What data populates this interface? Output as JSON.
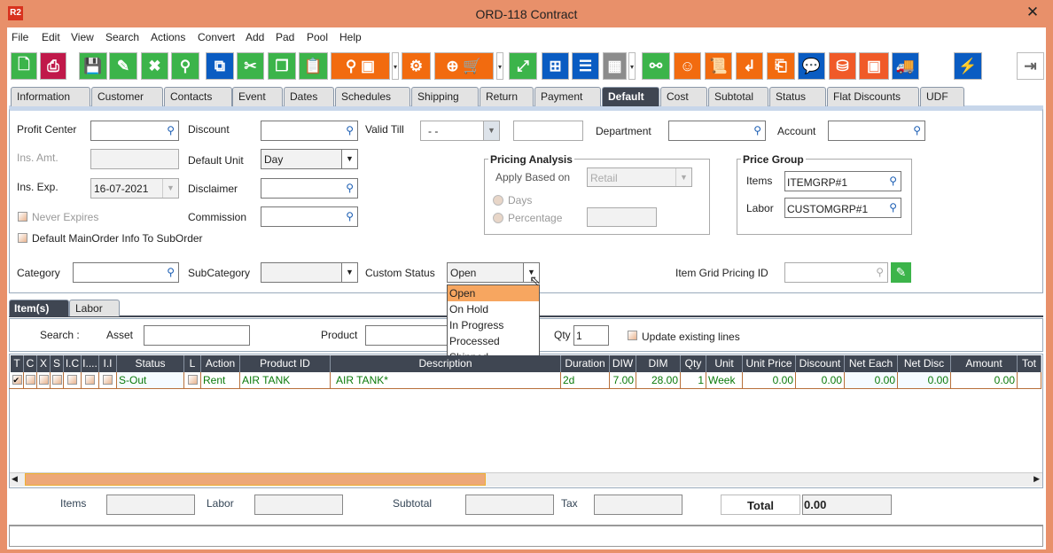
{
  "window": {
    "title": "ORD-118 Contract",
    "logo": "R2",
    "close": "✕"
  },
  "menu": [
    "File",
    "Edit",
    "View",
    "Search",
    "Actions",
    "Convert",
    "Add",
    "Pad",
    "Pool",
    "Help"
  ],
  "toolbar": {
    "buttons": [
      {
        "icon": "new-document-icon",
        "color": "#3cb44a",
        "glyph": "🗋"
      },
      {
        "icon": "print-icon",
        "color": "#c0194a",
        "glyph": "⎙"
      },
      {
        "icon": "save-icon",
        "color": "#3cb44a",
        "glyph": "💾"
      },
      {
        "icon": "edit-icon",
        "color": "#3cb44a",
        "glyph": "✎"
      },
      {
        "icon": "cancel-icon",
        "color": "#3cb44a",
        "glyph": "✖"
      },
      {
        "icon": "search-icon",
        "color": "#3cb44a",
        "glyph": "⚲"
      },
      {
        "icon": "copy-zero-icon",
        "color": "#0a5cc2",
        "glyph": "⧉"
      },
      {
        "icon": "cut-icon",
        "color": "#3cb44a",
        "glyph": "✂"
      },
      {
        "icon": "copy-icon",
        "color": "#3cb44a",
        "glyph": "❐"
      },
      {
        "icon": "paste-icon",
        "color": "#3cb44a",
        "glyph": "📋"
      },
      {
        "icon": "search-product-icon",
        "color": "#f26b0f",
        "glyph": "⚲ ▣"
      },
      {
        "icon": "dropdown-arrow-icon",
        "color": "",
        "glyph": "▾"
      },
      {
        "icon": "gears-icon",
        "color": "#f26b0f",
        "glyph": "⚙"
      },
      {
        "icon": "add-purchase-order-cart-icon",
        "color": "#f26b0f",
        "glyph": "⊕ 🛒"
      },
      {
        "icon": "dropdown-arrow-icon",
        "color": "",
        "glyph": "▾"
      },
      {
        "icon": "expand-icon",
        "color": "#3cb44a",
        "glyph": "⤢"
      },
      {
        "icon": "workflow-icon",
        "color": "#0a5cc2",
        "glyph": "⊞"
      },
      {
        "icon": "message-icon",
        "color": "#0a5cc2",
        "glyph": "☰"
      },
      {
        "icon": "calendar-icon",
        "color": "#8c8c8c",
        "glyph": "▦"
      },
      {
        "icon": "dropdown-arrow-icon",
        "color": "",
        "glyph": "▾"
      },
      {
        "icon": "hierarchy-icon",
        "color": "#3cb44a",
        "glyph": "⚯"
      },
      {
        "icon": "smile-icon",
        "color": "#f26b0f",
        "glyph": "☺"
      },
      {
        "icon": "scroll-icon",
        "color": "#f26b0f",
        "glyph": "📜"
      },
      {
        "icon": "return-icon",
        "color": "#f26b0f",
        "glyph": "↲"
      },
      {
        "icon": "box-return-icon",
        "color": "#f26b0f",
        "glyph": "⎗"
      },
      {
        "icon": "chat-zero-icon",
        "color": "#0a5cc2",
        "glyph": "💬"
      },
      {
        "icon": "coins-add-icon",
        "color": "#f05a28",
        "glyph": "⛁"
      },
      {
        "icon": "safe-icon",
        "color": "#f05a28",
        "glyph": "▣"
      },
      {
        "icon": "truck-check-icon",
        "color": "#0a5cc2",
        "glyph": "🚚"
      },
      {
        "icon": "lightning-icon",
        "color": "#0a5cc2",
        "glyph": "⚡"
      },
      {
        "icon": "exit-icon",
        "color": "#ffffff",
        "glyph": "⇥"
      }
    ]
  },
  "tabs": [
    "Information",
    "Customer",
    "Contacts",
    "Event",
    "Dates",
    "Schedules",
    "Shipping",
    "Return",
    "Payment",
    "Default",
    "Cost",
    "Subtotal",
    "Status",
    "Flat Discounts",
    "UDF"
  ],
  "active_tab": "Default",
  "form": {
    "profit_center": "Profit Center",
    "ins_amt": "Ins. Amt.",
    "ins_exp": "Ins. Exp.",
    "ins_exp_value": "16-07-2021",
    "never_expires": "Never Expires",
    "default_mainorder": "Default MainOrder Info To SubOrder",
    "discount": "Discount",
    "default_unit": "Default Unit",
    "default_unit_value": "Day",
    "disclaimer": "Disclaimer",
    "commission": "Commission",
    "valid_till": "Valid Till",
    "valid_till_value": "- -",
    "department": "Department",
    "account": "Account",
    "pricing_analysis": "Pricing Analysis",
    "apply_based_on": "Apply Based on",
    "apply_based_on_value": "Retail",
    "days": "Days",
    "percentage": "Percentage",
    "price_group": "Price Group",
    "items": "Items",
    "items_value": "ITEMGRP#1",
    "labor": "Labor",
    "labor_value": "CUSTOMGRP#1",
    "category": "Category",
    "subcategory": "SubCategory",
    "custom_status": "Custom Status",
    "custom_status_value": "Open",
    "item_grid_pricing_id": "Item Grid Pricing ID",
    "custom_status_options": [
      "Open",
      "On Hold",
      "In Progress",
      "Processed",
      "Shipped"
    ]
  },
  "subtabs": [
    "Item(s)",
    "Labor"
  ],
  "search_bar": {
    "search": "Search :",
    "asset": "Asset",
    "product": "Product",
    "qty": "Qty",
    "qty_value": "1",
    "update_existing": "Update existing lines"
  },
  "grid": {
    "columns": [
      "T",
      "C",
      "X",
      "S",
      "I.C",
      "I....",
      "I.I",
      "Status",
      "L",
      "Action",
      "Product ID",
      "Description",
      "Duration",
      "DIW",
      "DIM",
      "Qty",
      "Unit",
      "Unit Price",
      "Discount",
      "Net Each",
      "Net Disc",
      "Amount",
      "Tot"
    ],
    "rows": [
      {
        "status": "S-Out",
        "action": "Rent",
        "product_id": "AIR TANK",
        "description": "AIR TANK*",
        "duration": "2d",
        "diw": "7.00",
        "dim": "28.00",
        "qty": "1",
        "unit": "Week",
        "unit_price": "0.00",
        "discount": "0.00",
        "net_each": "0.00",
        "net_disc": "0.00",
        "amount": "0.00",
        "t_checked": true
      }
    ]
  },
  "totals": {
    "items": "Items",
    "labor": "Labor",
    "subtotal": "Subtotal",
    "tax": "Tax",
    "total": "Total",
    "total_value": "0.00"
  },
  "colors": {
    "accent": "#e8906a",
    "header": "#3f4652",
    "dropdown_highlight": "#f7a660",
    "grid_text": "#0a7a0a"
  }
}
